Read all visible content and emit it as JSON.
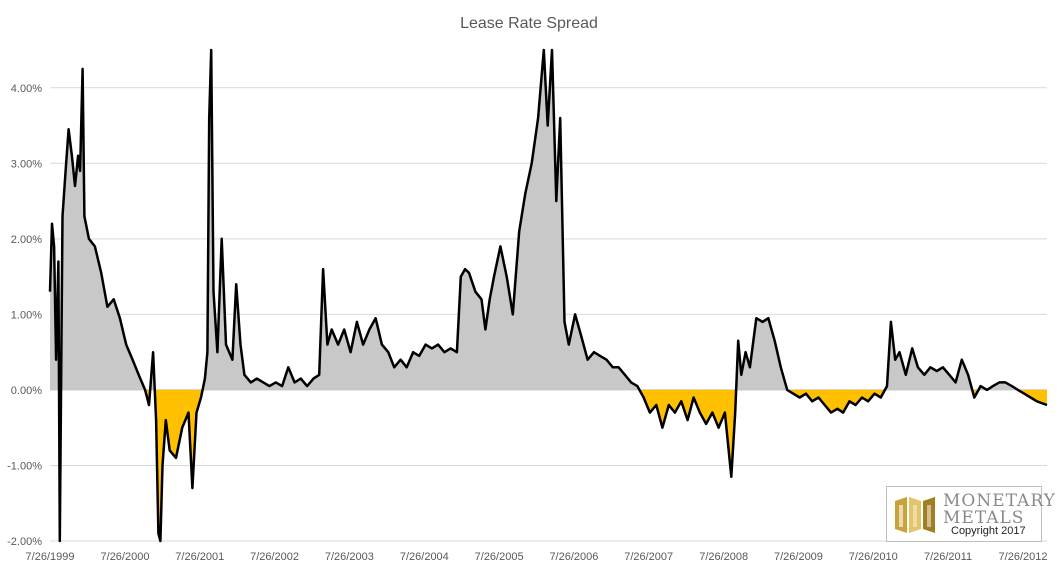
{
  "chart_data": {
    "type": "area",
    "title": "Lease Rate Spread",
    "xlabel": "",
    "ylabel": "",
    "x_tick_labels": [
      "7/26/1999",
      "7/26/2000",
      "7/26/2001",
      "7/26/2002",
      "7/26/2003",
      "7/26/2004",
      "7/26/2005",
      "7/26/2006",
      "7/26/2007",
      "7/26/2008",
      "7/26/2009",
      "7/26/2010",
      "7/26/2011",
      "7/26/2012"
    ],
    "y_tick_labels": [
      "-2.00%",
      "-1.00%",
      "0.00%",
      "1.00%",
      "2.00%",
      "3.00%",
      "4.00%"
    ],
    "ylim": [
      -2.0,
      4.5
    ],
    "xlim": [
      "1999-07-26",
      "2012-11-20"
    ],
    "grid": true,
    "colors": {
      "positive_fill": "#c8c8c8",
      "negative_fill": "#ffc000",
      "line": "#000000",
      "grid": "#d9d9d9",
      "zero_line": "#bfbfbf"
    },
    "series": [
      {
        "values_unit": "%",
        "points": [
          [
            "1999-07-26",
            1.3
          ],
          [
            "1999-08-05",
            2.2
          ],
          [
            "1999-08-15",
            1.9
          ],
          [
            "1999-08-25",
            0.4
          ],
          [
            "1999-09-05",
            1.7
          ],
          [
            "1999-09-12",
            -2.0
          ],
          [
            "1999-09-25",
            2.3
          ],
          [
            "1999-10-10",
            2.9
          ],
          [
            "1999-10-25",
            3.45
          ],
          [
            "1999-11-10",
            3.1
          ],
          [
            "1999-11-25",
            2.7
          ],
          [
            "1999-12-10",
            3.1
          ],
          [
            "1999-12-20",
            2.9
          ],
          [
            "2000-01-01",
            4.25
          ],
          [
            "2000-01-10",
            2.3
          ],
          [
            "2000-02-01",
            2.0
          ],
          [
            "2000-03-01",
            1.9
          ],
          [
            "2000-04-01",
            1.55
          ],
          [
            "2000-05-01",
            1.1
          ],
          [
            "2000-06-01",
            1.2
          ],
          [
            "2000-07-01",
            0.95
          ],
          [
            "2000-08-01",
            0.6
          ],
          [
            "2000-09-01",
            0.4
          ],
          [
            "2000-10-01",
            0.2
          ],
          [
            "2000-11-01",
            0.0
          ],
          [
            "2000-11-20",
            -0.2
          ],
          [
            "2000-12-10",
            0.5
          ],
          [
            "2000-12-25",
            -0.4
          ],
          [
            "2001-01-05",
            -1.9
          ],
          [
            "2001-01-15",
            -2.0
          ],
          [
            "2001-01-25",
            -1.0
          ],
          [
            "2001-02-10",
            -0.4
          ],
          [
            "2001-03-01",
            -0.8
          ],
          [
            "2001-04-01",
            -0.9
          ],
          [
            "2001-05-01",
            -0.5
          ],
          [
            "2001-06-01",
            -0.3
          ],
          [
            "2001-06-20",
            -1.3
          ],
          [
            "2001-07-10",
            -0.3
          ],
          [
            "2001-08-01",
            -0.1
          ],
          [
            "2001-08-20",
            0.15
          ],
          [
            "2001-09-01",
            0.5
          ],
          [
            "2001-09-10",
            3.6
          ],
          [
            "2001-09-20",
            4.5
          ],
          [
            "2001-10-01",
            1.3
          ],
          [
            "2001-10-20",
            0.5
          ],
          [
            "2001-11-10",
            2.0
          ],
          [
            "2001-12-01",
            0.6
          ],
          [
            "2002-01-01",
            0.4
          ],
          [
            "2002-01-20",
            1.4
          ],
          [
            "2002-02-10",
            0.6
          ],
          [
            "2002-03-01",
            0.2
          ],
          [
            "2002-04-01",
            0.1
          ],
          [
            "2002-05-01",
            0.15
          ],
          [
            "2002-06-01",
            0.1
          ],
          [
            "2002-07-01",
            0.05
          ],
          [
            "2002-08-01",
            0.1
          ],
          [
            "2002-09-01",
            0.05
          ],
          [
            "2002-10-01",
            0.3
          ],
          [
            "2002-11-01",
            0.1
          ],
          [
            "2002-12-01",
            0.15
          ],
          [
            "2003-01-01",
            0.05
          ],
          [
            "2003-02-01",
            0.15
          ],
          [
            "2003-03-01",
            0.2
          ],
          [
            "2003-03-20",
            1.6
          ],
          [
            "2003-04-10",
            0.6
          ],
          [
            "2003-05-01",
            0.8
          ],
          [
            "2003-06-01",
            0.6
          ],
          [
            "2003-07-01",
            0.8
          ],
          [
            "2003-08-01",
            0.5
          ],
          [
            "2003-09-01",
            0.9
          ],
          [
            "2003-10-01",
            0.6
          ],
          [
            "2003-11-01",
            0.8
          ],
          [
            "2003-12-01",
            0.95
          ],
          [
            "2004-01-01",
            0.6
          ],
          [
            "2004-02-01",
            0.5
          ],
          [
            "2004-03-01",
            0.3
          ],
          [
            "2004-04-01",
            0.4
          ],
          [
            "2004-05-01",
            0.3
          ],
          [
            "2004-06-01",
            0.5
          ],
          [
            "2004-07-01",
            0.45
          ],
          [
            "2004-08-01",
            0.6
          ],
          [
            "2004-09-01",
            0.55
          ],
          [
            "2004-10-01",
            0.6
          ],
          [
            "2004-11-01",
            0.5
          ],
          [
            "2004-12-01",
            0.55
          ],
          [
            "2005-01-01",
            0.5
          ],
          [
            "2005-01-20",
            1.5
          ],
          [
            "2005-02-10",
            1.6
          ],
          [
            "2005-03-01",
            1.55
          ],
          [
            "2005-04-01",
            1.3
          ],
          [
            "2005-05-01",
            1.2
          ],
          [
            "2005-05-20",
            0.8
          ],
          [
            "2005-06-10",
            1.2
          ],
          [
            "2005-07-01",
            1.5
          ],
          [
            "2005-08-01",
            1.9
          ],
          [
            "2005-09-01",
            1.5
          ],
          [
            "2005-10-01",
            1.0
          ],
          [
            "2005-11-01",
            2.1
          ],
          [
            "2005-12-01",
            2.6
          ],
          [
            "2006-01-01",
            3.0
          ],
          [
            "2006-02-01",
            3.6
          ],
          [
            "2006-03-01",
            4.5
          ],
          [
            "2006-03-20",
            3.5
          ],
          [
            "2006-04-10",
            4.5
          ],
          [
            "2006-05-01",
            2.5
          ],
          [
            "2006-05-20",
            3.6
          ],
          [
            "2006-06-10",
            0.9
          ],
          [
            "2006-07-01",
            0.6
          ],
          [
            "2006-08-01",
            1.0
          ],
          [
            "2006-09-01",
            0.7
          ],
          [
            "2006-10-01",
            0.4
          ],
          [
            "2006-11-01",
            0.5
          ],
          [
            "2006-12-01",
            0.45
          ],
          [
            "2007-01-01",
            0.4
          ],
          [
            "2007-02-01",
            0.3
          ],
          [
            "2007-03-01",
            0.3
          ],
          [
            "2007-04-01",
            0.2
          ],
          [
            "2007-05-01",
            0.1
          ],
          [
            "2007-06-01",
            0.05
          ],
          [
            "2007-07-01",
            -0.1
          ],
          [
            "2007-08-01",
            -0.3
          ],
          [
            "2007-09-01",
            -0.2
          ],
          [
            "2007-10-01",
            -0.5
          ],
          [
            "2007-11-01",
            -0.2
          ],
          [
            "2007-12-01",
            -0.3
          ],
          [
            "2008-01-01",
            -0.15
          ],
          [
            "2008-02-01",
            -0.4
          ],
          [
            "2008-03-01",
            -0.1
          ],
          [
            "2008-04-01",
            -0.3
          ],
          [
            "2008-05-01",
            -0.45
          ],
          [
            "2008-06-01",
            -0.3
          ],
          [
            "2008-07-01",
            -0.5
          ],
          [
            "2008-08-01",
            -0.3
          ],
          [
            "2008-09-01",
            -1.15
          ],
          [
            "2008-09-20",
            -0.3
          ],
          [
            "2008-10-05",
            0.65
          ],
          [
            "2008-10-20",
            0.2
          ],
          [
            "2008-11-10",
            0.5
          ],
          [
            "2008-12-01",
            0.3
          ],
          [
            "2009-01-01",
            0.95
          ],
          [
            "2009-02-01",
            0.9
          ],
          [
            "2009-03-01",
            0.95
          ],
          [
            "2009-04-01",
            0.65
          ],
          [
            "2009-05-01",
            0.3
          ],
          [
            "2009-06-01",
            0.0
          ],
          [
            "2009-07-01",
            -0.05
          ],
          [
            "2009-08-01",
            -0.1
          ],
          [
            "2009-09-01",
            -0.05
          ],
          [
            "2009-10-01",
            -0.15
          ],
          [
            "2009-11-01",
            -0.1
          ],
          [
            "2009-12-01",
            -0.2
          ],
          [
            "2010-01-01",
            -0.3
          ],
          [
            "2010-02-01",
            -0.25
          ],
          [
            "2010-03-01",
            -0.3
          ],
          [
            "2010-04-01",
            -0.15
          ],
          [
            "2010-05-01",
            -0.2
          ],
          [
            "2010-06-01",
            -0.1
          ],
          [
            "2010-07-01",
            -0.15
          ],
          [
            "2010-08-01",
            -0.05
          ],
          [
            "2010-09-01",
            -0.1
          ],
          [
            "2010-10-01",
            0.05
          ],
          [
            "2010-10-20",
            0.9
          ],
          [
            "2010-11-10",
            0.4
          ],
          [
            "2010-12-01",
            0.5
          ],
          [
            "2011-01-01",
            0.2
          ],
          [
            "2011-02-01",
            0.55
          ],
          [
            "2011-03-01",
            0.3
          ],
          [
            "2011-04-01",
            0.2
          ],
          [
            "2011-05-01",
            0.3
          ],
          [
            "2011-06-01",
            0.25
          ],
          [
            "2011-07-01",
            0.3
          ],
          [
            "2011-08-01",
            0.2
          ],
          [
            "2011-09-01",
            0.1
          ],
          [
            "2011-10-01",
            0.4
          ],
          [
            "2011-11-01",
            0.2
          ],
          [
            "2011-12-01",
            -0.1
          ],
          [
            "2012-01-01",
            0.05
          ],
          [
            "2012-02-01",
            0.0
          ],
          [
            "2012-03-01",
            0.05
          ],
          [
            "2012-04-01",
            0.1
          ],
          [
            "2012-05-01",
            0.1
          ],
          [
            "2012-06-01",
            0.05
          ],
          [
            "2012-07-01",
            0.0
          ],
          [
            "2012-08-01",
            -0.05
          ],
          [
            "2012-09-01",
            -0.1
          ],
          [
            "2012-10-01",
            -0.15
          ],
          [
            "2012-11-20",
            -0.2
          ]
        ]
      }
    ]
  },
  "logo": {
    "line1": "MONETARY",
    "line2": "METALS",
    "copyright": "Copyright 2017",
    "colors": {
      "gold": "#c9a23a",
      "gray": "#8a8a8a"
    }
  }
}
